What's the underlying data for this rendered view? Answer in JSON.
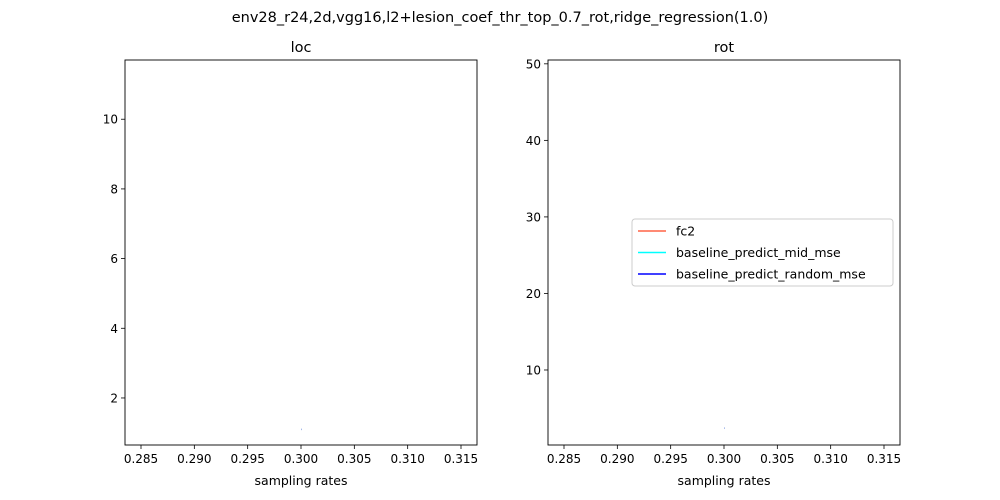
{
  "figure_title": "env28_r24,2d,vgg16,l2+lesion_coef_thr_top_0.7_rot,ridge_regression(1.0)",
  "chart_data": [
    {
      "type": "line",
      "title": "loc",
      "xlabel": "sampling rates",
      "ylabel": "",
      "xlim": [
        0.2835,
        0.3165
      ],
      "ylim": [
        0.65,
        11.7
      ],
      "xticks": [
        0.285,
        0.29,
        0.295,
        0.3,
        0.305,
        0.31,
        0.315
      ],
      "xtick_labels": [
        "0.285",
        "0.290",
        "0.295",
        "0.300",
        "0.305",
        "0.310",
        "0.315"
      ],
      "yticks": [
        2,
        4,
        6,
        8,
        10
      ],
      "ytick_labels": [
        "2",
        "4",
        "6",
        "8",
        "10"
      ],
      "grid": false,
      "series": [
        {
          "name": "fc2",
          "color": "#ff6347",
          "x": [
            0.3
          ],
          "y": [
            1.1
          ]
        },
        {
          "name": "baseline_predict_mid_mse",
          "color": "#00ffff",
          "x": [
            0.3
          ],
          "y": [
            1.1
          ]
        },
        {
          "name": "baseline_predict_random_mse",
          "color": "#0000ff",
          "x": [
            0.3
          ],
          "y": [
            1.1
          ]
        }
      ]
    },
    {
      "type": "line",
      "title": "rot",
      "xlabel": "sampling rates",
      "ylabel": "",
      "xlim": [
        0.2835,
        0.3165
      ],
      "ylim": [
        0.2,
        50.5
      ],
      "xticks": [
        0.285,
        0.29,
        0.295,
        0.3,
        0.305,
        0.31,
        0.315
      ],
      "xtick_labels": [
        "0.285",
        "0.290",
        "0.295",
        "0.300",
        "0.305",
        "0.310",
        "0.315"
      ],
      "yticks": [
        10,
        20,
        30,
        40,
        50
      ],
      "ytick_labels": [
        "10",
        "20",
        "30",
        "40",
        "50"
      ],
      "grid": false,
      "legend_position": "center-right",
      "series": [
        {
          "name": "fc2",
          "color": "#ff6347",
          "x": [
            0.3
          ],
          "y": [
            2.4
          ]
        },
        {
          "name": "baseline_predict_mid_mse",
          "color": "#00ffff",
          "x": [
            0.3
          ],
          "y": [
            2.4
          ]
        },
        {
          "name": "baseline_predict_random_mse",
          "color": "#0000ff",
          "x": [
            0.3
          ],
          "y": [
            2.4
          ]
        }
      ]
    }
  ]
}
